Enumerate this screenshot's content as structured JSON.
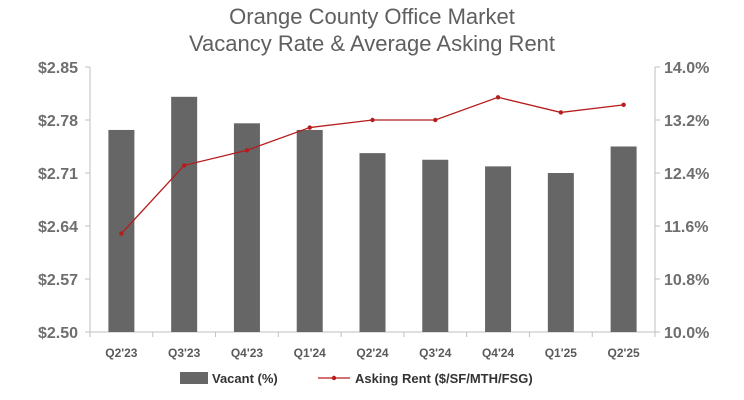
{
  "chart_data": {
    "type": "bar",
    "title": [
      "Orange County Office Market",
      "Vacancy Rate & Average Asking Rent"
    ],
    "categories": [
      "Q2'23",
      "Q3'23",
      "Q4'23",
      "Q1'24",
      "Q2'24",
      "Q3'24",
      "Q4'24",
      "Q1'25",
      "Q2'25"
    ],
    "series": [
      {
        "name": "Vacant (%)",
        "type": "bar",
        "axis": "right",
        "color": "#666666",
        "values": [
          13.05,
          13.55,
          13.15,
          13.05,
          12.7,
          12.6,
          12.5,
          12.4,
          12.8
        ]
      },
      {
        "name": "Asking Rent ($/SF/MTH/FSG)",
        "type": "line",
        "axis": "left",
        "color": "#b71c1c",
        "values": [
          2.63,
          2.72,
          2.74,
          2.77,
          2.78,
          2.78,
          2.81,
          2.79,
          2.8
        ]
      }
    ],
    "y_left": {
      "ylim": [
        2.5,
        2.85
      ],
      "ticks": [
        "$2.50",
        "$2.57",
        "$2.64",
        "$2.71",
        "$2.78",
        "$2.85"
      ]
    },
    "y_right": {
      "ylim": [
        10.0,
        14.0
      ],
      "ticks": [
        "10.0%",
        "10.8%",
        "11.6%",
        "12.4%",
        "13.2%",
        "14.0%"
      ]
    },
    "legend_position": "bottom",
    "grid": false
  }
}
